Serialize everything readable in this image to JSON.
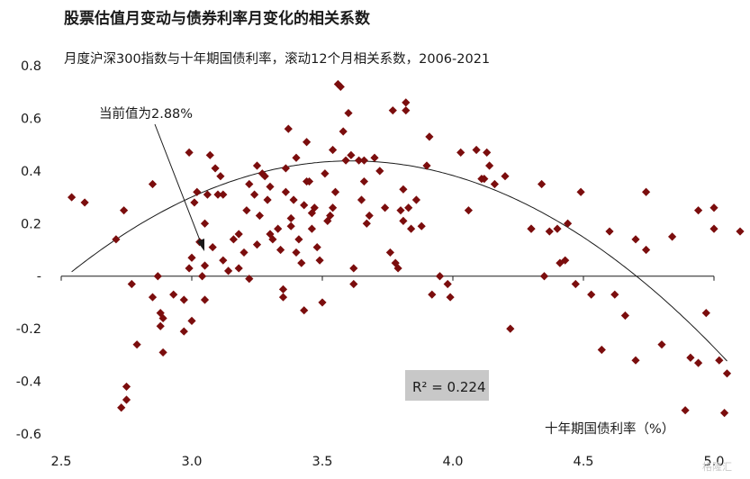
{
  "chart_data": {
    "type": "scatter",
    "title": "股票估值月变动与债券利率月变化的相关系数",
    "subtitle": "月度沪深300指数与十年期国债利率，滚动12个月相关系数，2006-2021",
    "xlabel": "十年期国债利率（%）",
    "ylabel": "",
    "xlim": [
      2.5,
      5.0
    ],
    "ylim": [
      -0.6,
      0.8
    ],
    "xticks": [
      "2.5",
      "3.0",
      "3.5",
      "4.0",
      "4.5",
      "5.0"
    ],
    "yticks": [
      "0.8",
      "0.6",
      "0.4",
      "0.2",
      "-",
      "-0.2",
      "-0.4",
      "-0.6"
    ],
    "marker_color": "#7b0d0d",
    "trend_color": "#1a1a1a",
    "annotation": "当前值为2.88%",
    "r_squared_label": "R² = 0.224",
    "trend": {
      "type": "quadratic",
      "coefficients": [
        -4.3542,
        2.6542,
        -0.3675
      ]
    },
    "points": [
      [
        2.54,
        0.3
      ],
      [
        2.59,
        0.28
      ],
      [
        2.71,
        0.14
      ],
      [
        2.74,
        0.25
      ],
      [
        2.73,
        -0.5
      ],
      [
        2.75,
        -0.47
      ],
      [
        2.75,
        -0.42
      ],
      [
        2.77,
        -0.03
      ],
      [
        2.79,
        -0.26
      ],
      [
        2.85,
        0.35
      ],
      [
        2.85,
        -0.08
      ],
      [
        2.87,
        0.0
      ],
      [
        2.88,
        -0.14
      ],
      [
        2.88,
        -0.19
      ],
      [
        2.89,
        -0.29
      ],
      [
        2.89,
        -0.16
      ],
      [
        2.93,
        -0.07
      ],
      [
        2.97,
        -0.09
      ],
      [
        2.97,
        -0.21
      ],
      [
        2.99,
        0.47
      ],
      [
        2.99,
        0.03
      ],
      [
        3.0,
        -0.17
      ],
      [
        3.0,
        0.07
      ],
      [
        3.01,
        0.28
      ],
      [
        3.02,
        0.32
      ],
      [
        3.03,
        0.13
      ],
      [
        3.04,
        0.0
      ],
      [
        3.05,
        -0.09
      ],
      [
        3.05,
        0.04
      ],
      [
        3.05,
        0.2
      ],
      [
        3.06,
        0.31
      ],
      [
        3.07,
        0.46
      ],
      [
        3.08,
        0.11
      ],
      [
        3.09,
        0.41
      ],
      [
        3.1,
        0.31
      ],
      [
        3.11,
        0.38
      ],
      [
        3.12,
        0.06
      ],
      [
        3.12,
        0.31
      ],
      [
        3.14,
        0.02
      ],
      [
        3.16,
        0.14
      ],
      [
        3.18,
        0.16
      ],
      [
        3.18,
        0.03
      ],
      [
        3.2,
        0.09
      ],
      [
        3.21,
        0.25
      ],
      [
        3.22,
        0.35
      ],
      [
        3.22,
        -0.01
      ],
      [
        3.24,
        0.31
      ],
      [
        3.25,
        0.12
      ],
      [
        3.25,
        0.42
      ],
      [
        3.26,
        0.23
      ],
      [
        3.27,
        0.39
      ],
      [
        3.28,
        0.38
      ],
      [
        3.29,
        0.29
      ],
      [
        3.3,
        0.34
      ],
      [
        3.3,
        0.16
      ],
      [
        3.31,
        0.14
      ],
      [
        3.33,
        0.18
      ],
      [
        3.34,
        0.1
      ],
      [
        3.35,
        -0.05
      ],
      [
        3.35,
        -0.08
      ],
      [
        3.36,
        0.41
      ],
      [
        3.36,
        0.32
      ],
      [
        3.37,
        0.56
      ],
      [
        3.38,
        0.22
      ],
      [
        3.38,
        0.19
      ],
      [
        3.39,
        0.29
      ],
      [
        3.4,
        0.09
      ],
      [
        3.4,
        0.45
      ],
      [
        3.41,
        0.14
      ],
      [
        3.42,
        0.05
      ],
      [
        3.43,
        -0.13
      ],
      [
        3.43,
        0.27
      ],
      [
        3.44,
        0.36
      ],
      [
        3.44,
        0.51
      ],
      [
        3.45,
        0.36
      ],
      [
        3.46,
        0.18
      ],
      [
        3.46,
        0.24
      ],
      [
        3.47,
        0.26
      ],
      [
        3.48,
        0.11
      ],
      [
        3.49,
        0.06
      ],
      [
        3.5,
        -0.1
      ],
      [
        3.51,
        0.39
      ],
      [
        3.52,
        0.21
      ],
      [
        3.53,
        0.23
      ],
      [
        3.54,
        0.26
      ],
      [
        3.54,
        0.48
      ],
      [
        3.55,
        0.32
      ],
      [
        3.56,
        0.73
      ],
      [
        3.57,
        0.72
      ],
      [
        3.58,
        0.55
      ],
      [
        3.59,
        0.44
      ],
      [
        3.6,
        0.62
      ],
      [
        3.61,
        0.46
      ],
      [
        3.62,
        -0.03
      ],
      [
        3.62,
        0.03
      ],
      [
        3.64,
        0.44
      ],
      [
        3.65,
        0.29
      ],
      [
        3.66,
        0.44
      ],
      [
        3.66,
        0.36
      ],
      [
        3.67,
        0.2
      ],
      [
        3.68,
        0.23
      ],
      [
        3.7,
        0.45
      ],
      [
        3.72,
        0.4
      ],
      [
        3.74,
        0.26
      ],
      [
        3.76,
        0.09
      ],
      [
        3.77,
        0.63
      ],
      [
        3.78,
        0.05
      ],
      [
        3.79,
        0.03
      ],
      [
        3.8,
        0.25
      ],
      [
        3.81,
        0.21
      ],
      [
        3.81,
        0.33
      ],
      [
        3.82,
        0.66
      ],
      [
        3.82,
        0.63
      ],
      [
        3.83,
        0.26
      ],
      [
        3.84,
        0.18
      ],
      [
        3.86,
        0.29
      ],
      [
        3.88,
        0.19
      ],
      [
        3.9,
        0.42
      ],
      [
        3.91,
        0.53
      ],
      [
        3.92,
        -0.07
      ],
      [
        3.95,
        0.0
      ],
      [
        3.98,
        -0.03
      ],
      [
        3.99,
        -0.08
      ],
      [
        4.03,
        0.47
      ],
      [
        4.06,
        0.25
      ],
      [
        4.09,
        0.48
      ],
      [
        4.11,
        0.37
      ],
      [
        4.12,
        0.37
      ],
      [
        4.13,
        0.47
      ],
      [
        4.14,
        0.42
      ],
      [
        4.16,
        0.35
      ],
      [
        4.2,
        0.38
      ],
      [
        4.22,
        -0.2
      ],
      [
        4.3,
        0.18
      ],
      [
        4.3,
        0.18
      ],
      [
        4.34,
        0.35
      ],
      [
        4.35,
        0.0
      ],
      [
        4.37,
        0.17
      ],
      [
        4.4,
        0.18
      ],
      [
        4.41,
        0.05
      ],
      [
        4.43,
        0.06
      ],
      [
        4.44,
        0.2
      ],
      [
        4.47,
        -0.03
      ],
      [
        4.49,
        0.32
      ],
      [
        4.53,
        -0.07
      ],
      [
        4.57,
        -0.28
      ],
      [
        4.6,
        0.17
      ],
      [
        4.62,
        -0.07
      ],
      [
        4.66,
        -0.15
      ],
      [
        4.7,
        0.14
      ],
      [
        4.7,
        -0.32
      ],
      [
        4.74,
        0.32
      ],
      [
        4.74,
        0.1
      ],
      [
        4.8,
        -0.26
      ],
      [
        4.84,
        0.15
      ],
      [
        4.89,
        -0.51
      ],
      [
        4.91,
        -0.31
      ],
      [
        4.94,
        -0.33
      ],
      [
        4.94,
        0.25
      ],
      [
        4.97,
        -0.14
      ],
      [
        5.0,
        0.26
      ],
      [
        5.0,
        0.18
      ],
      [
        5.02,
        -0.32
      ],
      [
        5.04,
        -0.52
      ],
      [
        5.05,
        -0.37
      ],
      [
        5.1,
        0.17
      ]
    ]
  },
  "watermark": "格隆汇"
}
